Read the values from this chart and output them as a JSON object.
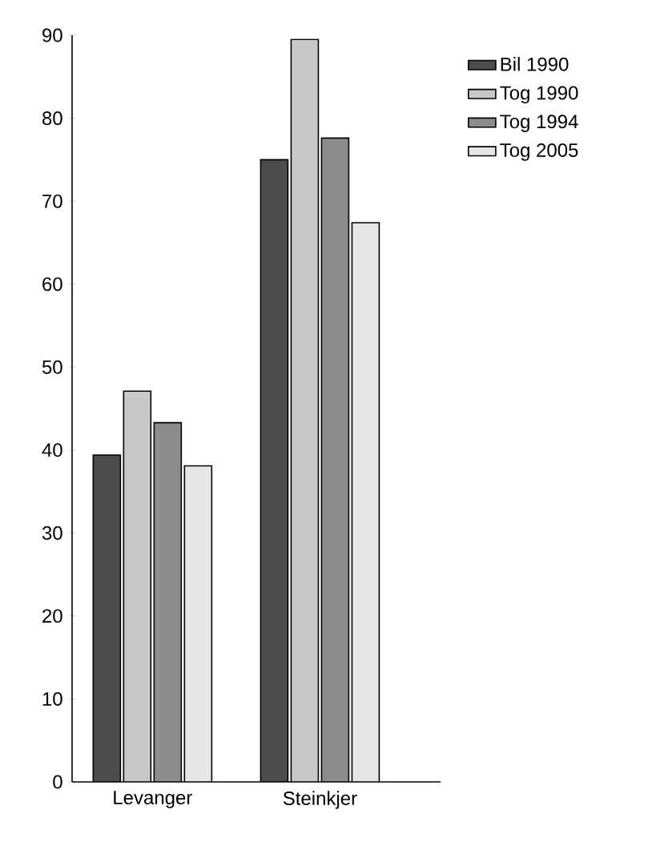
{
  "chart_data": {
    "type": "bar",
    "categories": [
      "Levanger",
      "Steinkjer"
    ],
    "series": [
      {
        "name": "Bil      1990",
        "color": "#4d4d4d",
        "values": [
          39.4,
          75
        ]
      },
      {
        "name": "Tog     1990",
        "color": "#c8c8c8",
        "values": [
          47.1,
          89.5
        ]
      },
      {
        "name": "Tog     1994",
        "color": "#8c8c8c",
        "values": [
          43.3,
          77.6
        ]
      },
      {
        "name": "Tog     2005",
        "color": "#e6e6e6",
        "values": [
          38.1,
          67.4
        ]
      }
    ],
    "ylim": [
      0,
      90
    ],
    "yticks": [
      0,
      10,
      20,
      30,
      40,
      50,
      60,
      70,
      80,
      90
    ],
    "legend": "top right"
  }
}
